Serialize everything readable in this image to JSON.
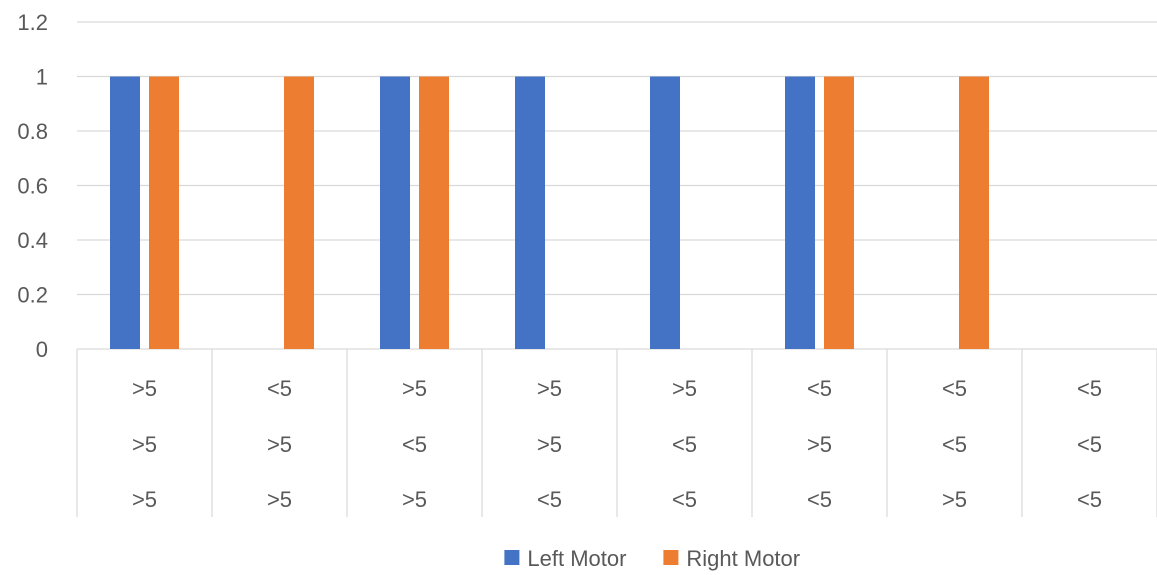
{
  "chart_data": {
    "type": "bar",
    "categories": [
      [
        ">5",
        ">5",
        ">5"
      ],
      [
        "<5",
        ">5",
        ">5"
      ],
      [
        ">5",
        "<5",
        ">5"
      ],
      [
        ">5",
        ">5",
        "<5"
      ],
      [
        ">5",
        "<5",
        "<5"
      ],
      [
        "<5",
        ">5",
        "<5"
      ],
      [
        "<5",
        "<5",
        ">5"
      ],
      [
        "<5",
        "<5",
        "<5"
      ]
    ],
    "series": [
      {
        "name": "Left Motor",
        "color": "#4472C4",
        "values": [
          1,
          0,
          1,
          1,
          1,
          1,
          0,
          0
        ]
      },
      {
        "name": "Right Motor",
        "color": "#ED7D31",
        "values": [
          1,
          1,
          1,
          0,
          0,
          1,
          1,
          0
        ]
      }
    ],
    "ylim": [
      0,
      1.2
    ],
    "yticks": [
      "0",
      "0.2",
      "0.4",
      "0.6",
      "0.8",
      "1",
      "1.2"
    ],
    "grid": true,
    "legend_position": "bottom"
  }
}
